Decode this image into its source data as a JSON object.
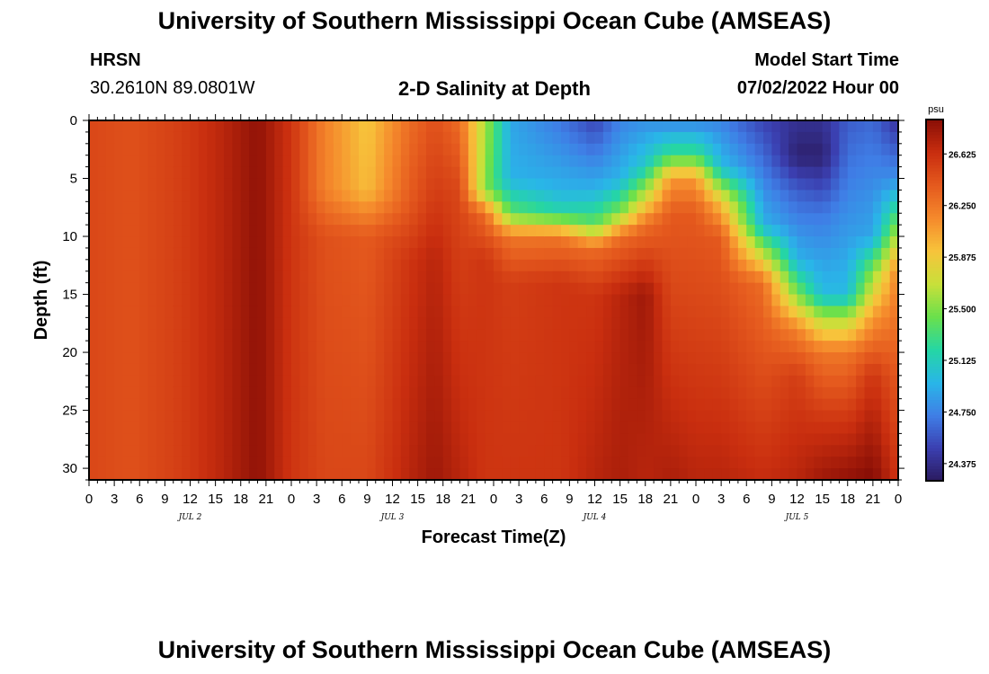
{
  "header": {
    "main_title": "University of Southern Mississippi Ocean Cube (AMSEAS)",
    "station_name": "HRSN",
    "station_coords": "30.2610N  89.0801W",
    "plot_title": "2-D Salinity at Depth",
    "model_label": "Model Start Time",
    "model_time": "07/02/2022 Hour 00",
    "footer_title": "University of Southern Mississippi Ocean Cube (AMSEAS)"
  },
  "chart_data": {
    "type": "heatmap",
    "title": "2-D Salinity at Depth",
    "xlabel": "Forecast Time(Z)",
    "ylabel": "Depth (ft)",
    "x_hours_range": [
      0,
      96
    ],
    "y_range_ft": [
      0,
      31
    ],
    "x_tick_labels": [
      "0",
      "3",
      "6",
      "9",
      "12",
      "15",
      "18",
      "21",
      "0",
      "3",
      "6",
      "9",
      "12",
      "15",
      "18",
      "21",
      "0",
      "3",
      "6",
      "9",
      "12",
      "15",
      "18",
      "21",
      "0",
      "3",
      "6",
      "9",
      "12",
      "15",
      "18",
      "21",
      "0"
    ],
    "y_ticks": [
      0,
      5,
      10,
      15,
      20,
      25,
      30
    ],
    "date_labels": [
      {
        "label": "JUL 2",
        "hour": 12
      },
      {
        "label": "JUL 3",
        "hour": 36
      },
      {
        "label": "JUL 4",
        "hour": 60
      },
      {
        "label": "JUL 5",
        "hour": 84
      }
    ],
    "colorbar": {
      "unit": "psu",
      "min": 24.25,
      "max": 26.875,
      "tick_labels": [
        "26.625",
        "26.250",
        "25.875",
        "25.500",
        "25.125",
        "24.750",
        "24.375"
      ],
      "tick_values": [
        26.625,
        26.25,
        25.875,
        25.5,
        25.125,
        24.75,
        24.375
      ],
      "colors": [
        "#2a1a5e",
        "#3b3fb0",
        "#3f7ee6",
        "#29b6e8",
        "#25d6a4",
        "#6ae04c",
        "#c8e03a",
        "#f7c43b",
        "#f58a2c",
        "#e55a1e",
        "#c92e0f",
        "#8a0f06"
      ]
    },
    "hour_profiles": [
      {
        "hour": 0,
        "profile": [
          [
            0,
            26.5
          ],
          [
            31,
            26.5
          ]
        ]
      },
      {
        "hour": 5,
        "profile": [
          [
            0,
            26.45
          ],
          [
            31,
            26.45
          ]
        ]
      },
      {
        "hour": 11,
        "profile": [
          [
            0,
            26.55
          ],
          [
            31,
            26.55
          ]
        ]
      },
      {
        "hour": 16,
        "profile": [
          [
            0,
            26.7
          ],
          [
            31,
            26.7
          ]
        ]
      },
      {
        "hour": 20,
        "profile": [
          [
            0,
            26.85
          ],
          [
            31,
            26.85
          ]
        ]
      },
      {
        "hour": 24,
        "profile": [
          [
            0,
            26.6
          ],
          [
            31,
            26.6
          ]
        ]
      },
      {
        "hour": 28,
        "profile": [
          [
            0,
            26.2
          ],
          [
            6,
            26.2
          ],
          [
            10,
            26.45
          ],
          [
            31,
            26.5
          ]
        ]
      },
      {
        "hour": 33,
        "profile": [
          [
            0,
            25.9
          ],
          [
            6,
            25.95
          ],
          [
            10,
            26.4
          ],
          [
            31,
            26.5
          ]
        ]
      },
      {
        "hour": 38,
        "profile": [
          [
            0,
            26.3
          ],
          [
            7,
            26.4
          ],
          [
            12,
            26.6
          ],
          [
            31,
            26.7
          ]
        ]
      },
      {
        "hour": 41,
        "profile": [
          [
            0,
            26.45
          ],
          [
            6,
            26.55
          ],
          [
            12,
            26.7
          ],
          [
            31,
            26.8
          ]
        ]
      },
      {
        "hour": 44,
        "profile": [
          [
            0,
            26.3
          ],
          [
            6,
            26.5
          ],
          [
            31,
            26.7
          ]
        ]
      },
      {
        "hour": 47,
        "profile": [
          [
            0,
            25.6
          ],
          [
            6,
            25.5
          ],
          [
            8,
            26.3
          ],
          [
            12,
            26.6
          ],
          [
            31,
            26.6
          ]
        ]
      },
      {
        "hour": 50,
        "profile": [
          [
            0,
            24.9
          ],
          [
            5,
            24.95
          ],
          [
            8,
            25.4
          ],
          [
            10,
            26.25
          ],
          [
            14,
            26.55
          ],
          [
            31,
            26.6
          ]
        ]
      },
      {
        "hour": 56,
        "profile": [
          [
            0,
            24.7
          ],
          [
            6,
            24.95
          ],
          [
            8,
            25.2
          ],
          [
            10,
            26.25
          ],
          [
            14,
            26.6
          ],
          [
            31,
            26.6
          ]
        ]
      },
      {
        "hour": 60,
        "profile": [
          [
            0,
            24.5
          ],
          [
            6,
            24.95
          ],
          [
            9,
            25.4
          ],
          [
            11,
            26.3
          ],
          [
            15,
            26.6
          ],
          [
            31,
            26.7
          ]
        ]
      },
      {
        "hour": 63,
        "profile": [
          [
            0,
            24.75
          ],
          [
            5,
            24.95
          ],
          [
            8,
            25.5
          ],
          [
            10,
            26.3
          ],
          [
            15,
            26.7
          ],
          [
            31,
            26.75
          ]
        ]
      },
      {
        "hour": 66,
        "profile": [
          [
            0,
            24.8
          ],
          [
            4,
            25.1
          ],
          [
            7,
            25.8
          ],
          [
            9,
            26.3
          ],
          [
            15,
            26.8
          ],
          [
            31,
            26.7
          ]
        ]
      },
      {
        "hour": 69,
        "profile": [
          [
            0,
            24.75
          ],
          [
            3,
            25.3
          ],
          [
            5,
            26.1
          ],
          [
            8,
            26.4
          ],
          [
            31,
            26.75
          ]
        ]
      },
      {
        "hour": 72,
        "profile": [
          [
            0,
            24.75
          ],
          [
            3,
            25.3
          ],
          [
            5,
            26.1
          ],
          [
            8,
            26.4
          ],
          [
            31,
            26.7
          ]
        ]
      },
      {
        "hour": 75,
        "profile": [
          [
            0,
            24.75
          ],
          [
            4,
            25.0
          ],
          [
            7,
            25.9
          ],
          [
            10,
            26.4
          ],
          [
            31,
            26.7
          ]
        ]
      },
      {
        "hour": 80,
        "profile": [
          [
            0,
            24.5
          ],
          [
            9,
            24.95
          ],
          [
            12,
            25.8
          ],
          [
            14,
            26.3
          ],
          [
            31,
            26.65
          ]
        ]
      },
      {
        "hour": 84,
        "profile": [
          [
            0,
            24.4
          ],
          [
            3,
            24.3
          ],
          [
            6,
            24.6
          ],
          [
            12,
            24.95
          ],
          [
            15,
            25.5
          ],
          [
            18,
            26.2
          ],
          [
            22,
            26.55
          ],
          [
            31,
            26.7
          ]
        ]
      },
      {
        "hour": 87,
        "profile": [
          [
            0,
            24.4
          ],
          [
            3,
            24.3
          ],
          [
            8,
            24.7
          ],
          [
            15,
            25.0
          ],
          [
            17,
            25.6
          ],
          [
            20,
            26.25
          ],
          [
            26,
            26.6
          ],
          [
            31,
            26.8
          ]
        ]
      },
      {
        "hour": 90,
        "profile": [
          [
            0,
            24.6
          ],
          [
            8,
            24.8
          ],
          [
            15,
            25.0
          ],
          [
            17,
            25.6
          ],
          [
            20,
            26.25
          ],
          [
            26,
            26.6
          ],
          [
            31,
            26.85
          ]
        ]
      },
      {
        "hour": 93,
        "profile": [
          [
            0,
            24.65
          ],
          [
            10,
            24.9
          ],
          [
            13,
            25.5
          ],
          [
            17,
            26.1
          ],
          [
            22,
            26.6
          ],
          [
            31,
            26.9
          ]
        ]
      },
      {
        "hour": 96,
        "profile": [
          [
            0,
            24.4
          ],
          [
            5,
            24.8
          ],
          [
            9,
            25.5
          ],
          [
            13,
            26.2
          ],
          [
            31,
            26.6
          ]
        ]
      }
    ]
  }
}
